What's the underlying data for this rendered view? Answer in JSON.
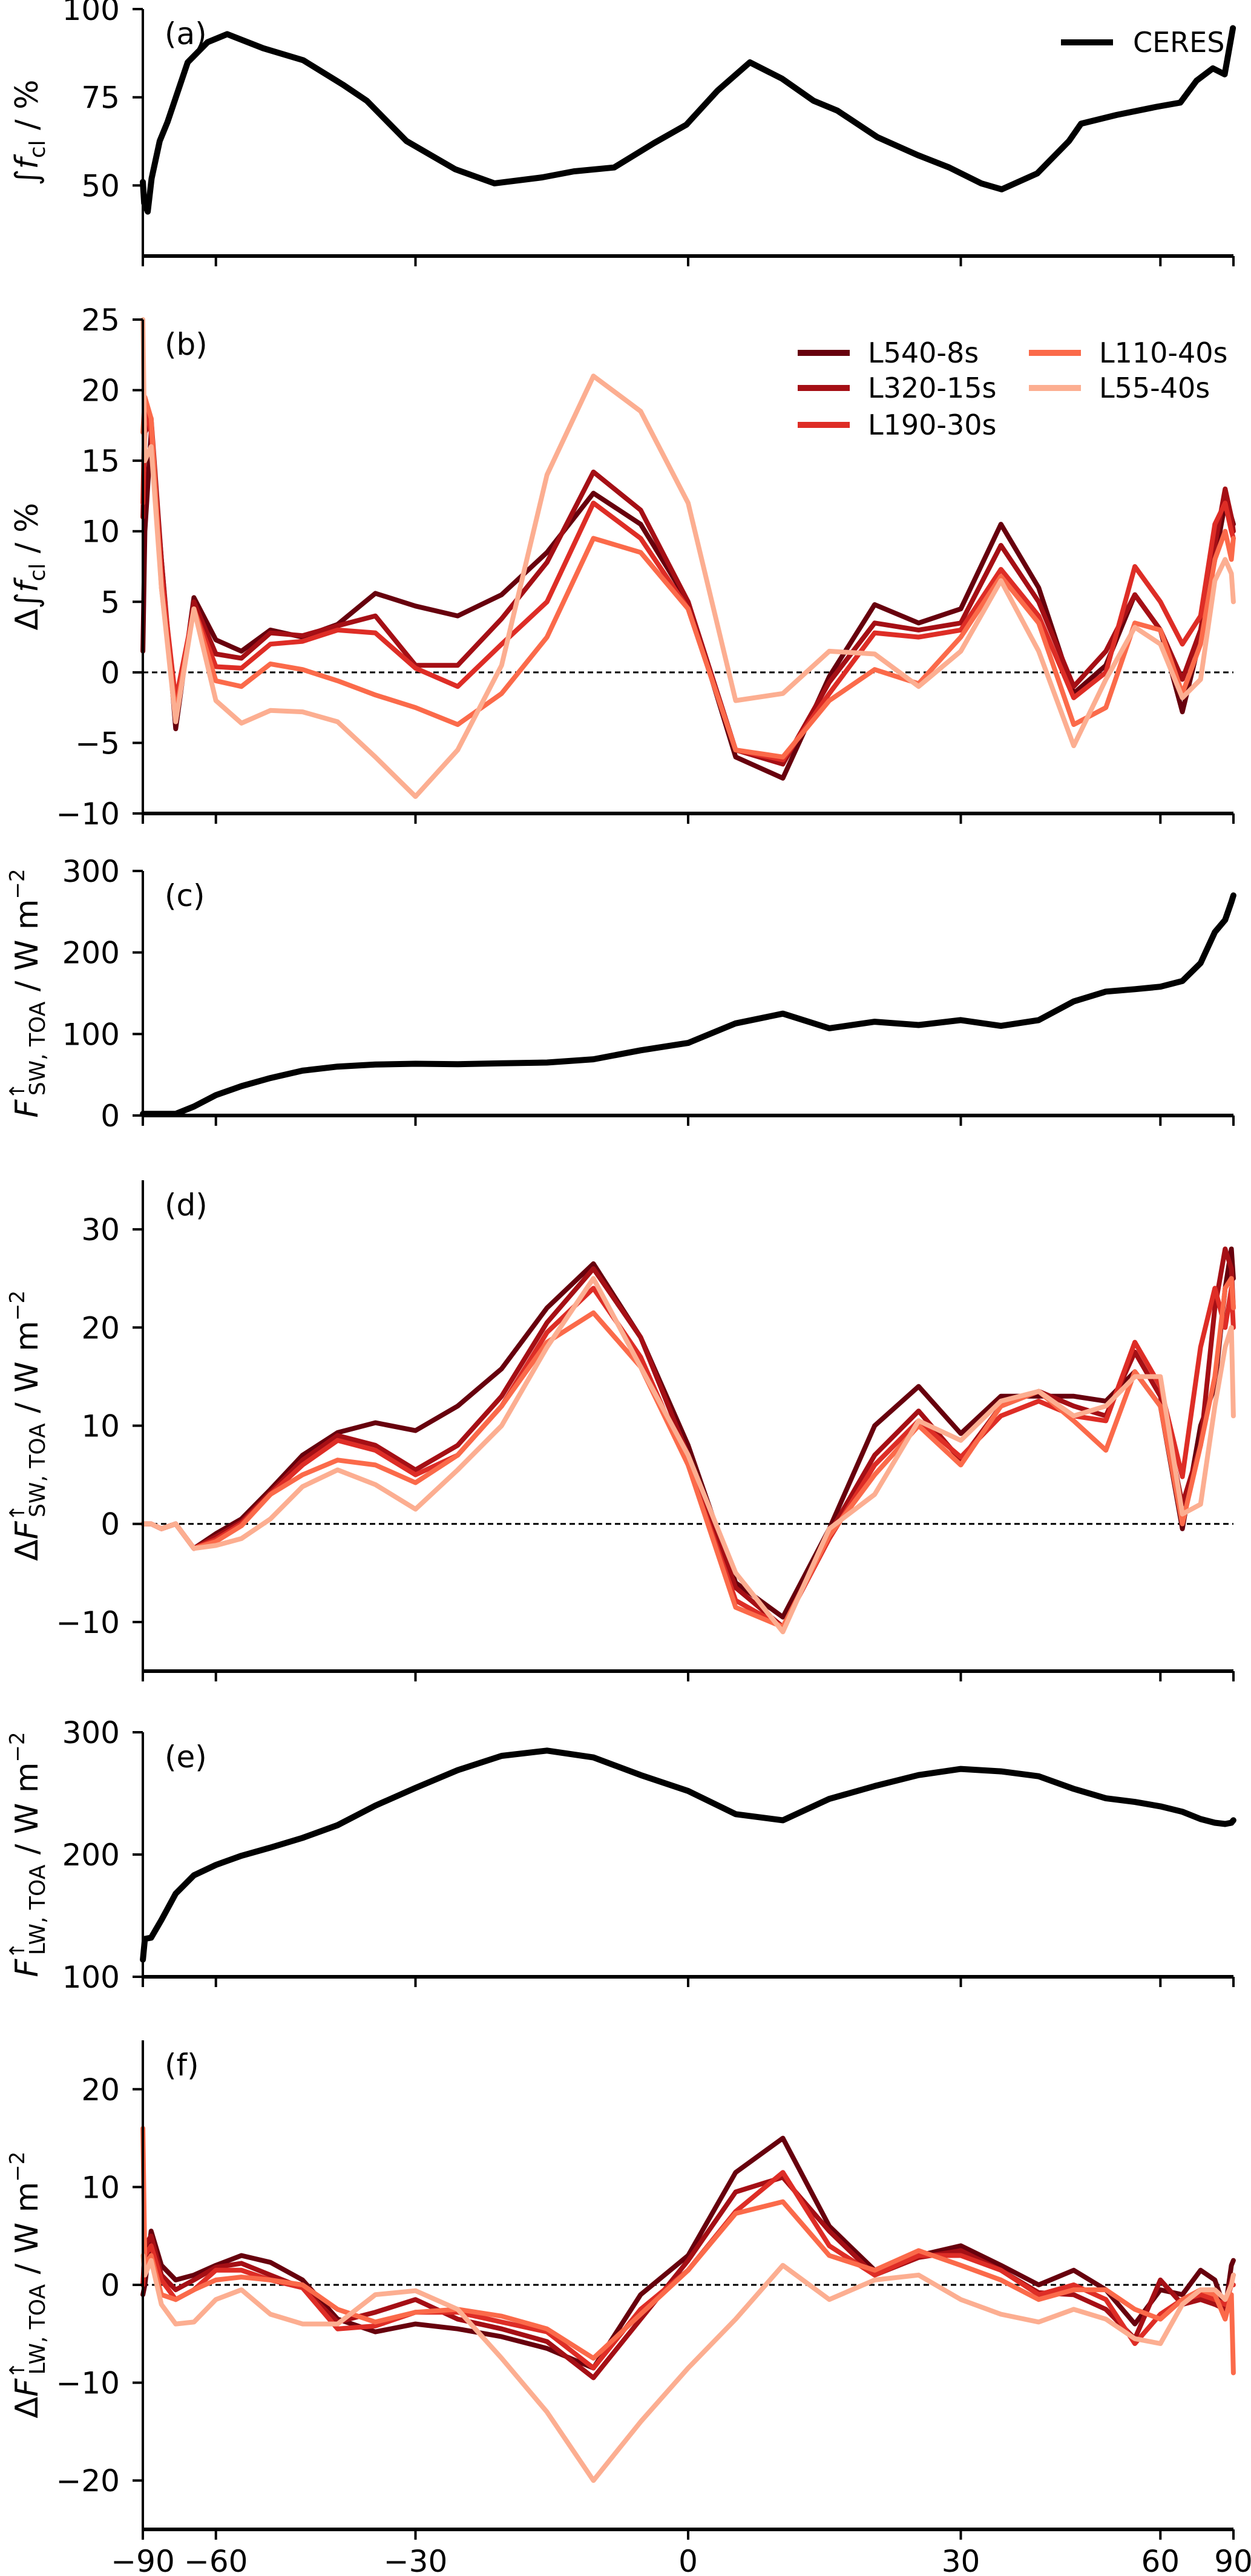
{
  "xticks": [
    -90,
    -60,
    -30,
    0,
    30,
    60,
    90
  ],
  "xscale": "sine-latitude",
  "series_colors": {
    "L540-8s": "#67000d",
    "L320-15s": "#a50f15",
    "L190-30s": "#de2d26",
    "L110-40s": "#fb6a4a",
    "L55-40s": "#fcae91",
    "CERES": "#000000"
  },
  "chart_data": [
    {
      "type": "line",
      "panel": "(a)",
      "ylabel": {
        "prefix": "∫",
        "sym": "f",
        "sup": "",
        "sub": "cl",
        "unit": " / %",
        "unit_sup": ""
      },
      "ylim": [
        30,
        100
      ],
      "yticks": [
        50,
        75,
        100
      ],
      "zero_line": false,
      "legend": "top-right",
      "x": [
        -89.8,
        -86,
        -82.3,
        -79.7,
        -75.7,
        -72.7,
        -66.6,
        -61.8,
        -57.7,
        -51.2,
        -44.9,
        -39.3,
        -36.1,
        -31.1,
        -25.3,
        -20.8,
        -15.5,
        -12.1,
        -7.8,
        -3.6,
        -0.2,
        3.1,
        6.5,
        9.9,
        13.3,
        15.9,
        20.3,
        24.9,
        28.6,
        32.5,
        35.1,
        39.8,
        44.3,
        46.1,
        51.8,
        59.2,
        64.5,
        68.8,
        74.2,
        79.7,
        87.5
      ],
      "series": [
        {
          "name": "CERES",
          "values": [
            51,
            45,
            42.6,
            52,
            62.6,
            68,
            84.9,
            90.6,
            92.9,
            88.9,
            85.5,
            78.6,
            74,
            62.6,
            54.6,
            50.6,
            52.3,
            54,
            55.1,
            62,
            67.2,
            76.9,
            84.9,
            80.3,
            74,
            71.2,
            63.7,
            58.6,
            55.1,
            50.6,
            48.9,
            53.4,
            62.6,
            67.5,
            70,
            72.3,
            73.5,
            79.7,
            83.2,
            81.5,
            94.6
          ]
        }
      ]
    },
    {
      "type": "line",
      "panel": "(b)",
      "ylabel": {
        "prefix": "Δ∫",
        "sym": "f",
        "sup": "",
        "sub": "cl",
        "unit": " / %",
        "unit_sup": ""
      },
      "ylim": [
        -10,
        25
      ],
      "yticks": [
        -10,
        -5,
        0,
        5,
        10,
        15,
        20,
        25
      ],
      "zero_line": true,
      "legend": "top-right",
      "x": [
        -89,
        -85,
        -80,
        -75,
        -70,
        -65,
        -60,
        -55,
        -50,
        -45,
        -40,
        -35,
        -30,
        -25,
        -20,
        -15,
        -10,
        -5,
        0,
        5,
        10,
        15,
        20,
        25,
        30,
        35,
        40,
        45,
        50,
        55,
        60,
        65,
        70,
        75,
        80,
        85,
        89
      ],
      "series": [
        {
          "name": "L540-8s",
          "values": [
            1.5,
            10,
            17,
            8,
            -4,
            5.3,
            2.3,
            1.5,
            3.0,
            2.5,
            3.4,
            5.6,
            4.7,
            4.0,
            5.5,
            8.5,
            12.7,
            10.5,
            5,
            -6,
            -7.5,
            -0.3,
            4.8,
            3.5,
            4.5,
            10.5,
            6.0,
            -1.5,
            0.5,
            5.5,
            3.0,
            -2.8,
            2.5,
            8,
            12,
            11,
            10.5
          ]
        },
        {
          "name": "L320-15s",
          "values": [
            11,
            17,
            18,
            8,
            -3.5,
            5,
            1.3,
            1.0,
            2.8,
            2.6,
            3.3,
            4.0,
            0.5,
            0.5,
            3.8,
            7.8,
            14.2,
            11.5,
            5,
            -5.5,
            -6.5,
            -0.7,
            3.5,
            3.0,
            3.5,
            9.0,
            5.0,
            -1.0,
            1.5,
            5.5,
            3.0,
            -0.5,
            3.0,
            9,
            13,
            11,
            10
          ]
        },
        {
          "name": "L190-30s",
          "values": [
            12,
            19,
            17,
            7,
            -2,
            4.5,
            0.4,
            0.3,
            2.0,
            2.2,
            3.0,
            2.8,
            0.3,
            -1.0,
            2.0,
            5.0,
            12.0,
            9.5,
            4.5,
            -5.5,
            -6.2,
            -1.5,
            2.8,
            2.5,
            3.0,
            7.3,
            4.0,
            -1.8,
            0.0,
            7.5,
            5.0,
            2.0,
            4.0,
            10.5,
            12,
            10,
            9.5
          ]
        },
        {
          "name": "L110-40s",
          "values": [
            17,
            19.5,
            18,
            6,
            -3,
            4.5,
            -0.6,
            -1.0,
            0.6,
            0.2,
            -0.6,
            -1.6,
            -2.5,
            -3.7,
            -1.5,
            2.5,
            9.5,
            8.5,
            4.5,
            -5.5,
            -6.0,
            -2.0,
            0.2,
            -0.8,
            2.5,
            6.8,
            3.5,
            -3.7,
            -2.5,
            3.5,
            3.0,
            -1.5,
            2.0,
            8,
            10,
            8,
            9.5
          ]
        },
        {
          "name": "L55-40s",
          "values": [
            25,
            15,
            16,
            6,
            -3.5,
            4.5,
            -2,
            -3.6,
            -2.7,
            -2.8,
            -3.5,
            -6.0,
            -8.8,
            -5.5,
            0.5,
            14,
            21.0,
            18.5,
            12,
            -2.0,
            -1.5,
            1.5,
            1.3,
            -1.0,
            1.5,
            6.5,
            1.5,
            -5.2,
            -0.5,
            3.2,
            2.0,
            -1.8,
            -0.5,
            6.5,
            8,
            7,
            5
          ]
        }
      ]
    },
    {
      "type": "line",
      "panel": "(c)",
      "ylabel": {
        "prefix": "",
        "sym": "F",
        "sup": "↑",
        "sub": "SW, TOA",
        "unit": " / W m",
        "unit_sup": "−2"
      },
      "ylim": [
        0,
        300
      ],
      "yticks": [
        0,
        100,
        200,
        300
      ],
      "zero_line": false,
      "x": [
        -89,
        -85,
        -80,
        -75,
        -70,
        -65,
        -60,
        -55,
        -50,
        -45,
        -40,
        -35,
        -30,
        -25,
        -20,
        -15,
        -10,
        -5,
        0,
        5,
        10,
        15,
        20,
        25,
        30,
        35,
        40,
        45,
        50,
        55,
        60,
        65,
        70,
        75,
        80,
        85,
        89
      ],
      "series": [
        {
          "name": "CERES",
          "values": [
            2,
            2,
            2,
            2,
            2,
            11,
            25,
            36,
            46,
            55,
            60,
            62.5,
            63.5,
            63,
            64,
            65,
            69,
            80,
            89,
            113,
            125,
            107,
            115,
            111,
            117,
            110,
            117,
            140,
            152,
            155,
            158,
            165,
            187,
            225,
            240,
            262,
            270
          ]
        }
      ]
    },
    {
      "type": "line",
      "panel": "(d)",
      "ylabel": {
        "prefix": "Δ",
        "sym": "F",
        "sup": "↑",
        "sub": "SW, TOA",
        "unit": " / W m",
        "unit_sup": "−2"
      },
      "ylim": [
        -15,
        35
      ],
      "yticks": [
        -10,
        0,
        10,
        20,
        30
      ],
      "zero_line": true,
      "x": [
        -89,
        -85,
        -80,
        -75,
        -70,
        -65,
        -60,
        -55,
        -50,
        -45,
        -40,
        -35,
        -30,
        -25,
        -20,
        -15,
        -10,
        -5,
        0,
        5,
        10,
        15,
        20,
        25,
        30,
        35,
        40,
        45,
        50,
        55,
        60,
        65,
        70,
        75,
        80,
        85,
        89
      ],
      "series": [
        {
          "name": "L540-8s",
          "values": [
            0,
            0,
            0,
            -0.5,
            0,
            -2.5,
            -1.0,
            0.5,
            3.5,
            7,
            9.3,
            10.3,
            9.5,
            12.0,
            15.8,
            22,
            26.5,
            19,
            8,
            -6,
            -9.5,
            -0.5,
            10,
            14,
            9.2,
            13,
            13,
            13,
            12.5,
            15.5,
            12,
            -0.5,
            10,
            14,
            24,
            28,
            25
          ]
        },
        {
          "name": "L320-15s",
          "values": [
            0,
            0,
            0,
            -0.5,
            0,
            -2.5,
            -1.3,
            0.2,
            3.2,
            6.5,
            9.0,
            8.0,
            5.5,
            8.0,
            13,
            20.5,
            26,
            19,
            7,
            -6.5,
            -10.5,
            -1,
            7,
            11.5,
            6.5,
            12,
            13.5,
            12,
            11,
            17.5,
            13,
            2.0,
            8,
            22,
            28,
            26,
            22
          ]
        },
        {
          "name": "L190-30s",
          "values": [
            0,
            0,
            0,
            -0.5,
            0,
            -2.5,
            -1.6,
            0,
            3.0,
            6.0,
            8.5,
            7.5,
            5.0,
            7.0,
            12,
            19.5,
            24,
            17,
            6,
            -7.8,
            -10.5,
            -1.5,
            6,
            10.5,
            6.8,
            11,
            12.5,
            11,
            10.5,
            18.5,
            14,
            4.8,
            18,
            24,
            20,
            24,
            20
          ]
        },
        {
          "name": "L110-40s",
          "values": [
            0,
            0,
            0,
            -0.5,
            0,
            -2.5,
            -1.8,
            -0.2,
            3.0,
            5.0,
            6.5,
            6.0,
            4.2,
            7.0,
            12,
            18.5,
            21.5,
            16,
            6,
            -8.5,
            -10.5,
            -1.2,
            5,
            10.0,
            6.0,
            12,
            13.5,
            10.5,
            7.5,
            15.5,
            12,
            0,
            8,
            15,
            24,
            25,
            22
          ]
        },
        {
          "name": "L55-40s",
          "values": [
            0,
            0,
            0,
            -0.5,
            0,
            -2.5,
            -2.2,
            -1.5,
            0.5,
            3.8,
            5.5,
            4.0,
            1.5,
            5.5,
            10,
            18,
            25,
            16,
            7,
            -5,
            -11,
            -0.5,
            3,
            10.5,
            8.5,
            12.5,
            13.5,
            11,
            12,
            15.0,
            15,
            1,
            2,
            12,
            18,
            20,
            11
          ]
        }
      ]
    },
    {
      "type": "line",
      "panel": "(e)",
      "ylabel": {
        "prefix": "",
        "sym": "F",
        "sup": "↑",
        "sub": "LW, TOA",
        "unit": " / W m",
        "unit_sup": "−2"
      },
      "ylim": [
        100,
        300
      ],
      "yticks": [
        100,
        200,
        300
      ],
      "zero_line": false,
      "x": [
        -89,
        -85,
        -80,
        -75,
        -70,
        -65,
        -60,
        -55,
        -50,
        -45,
        -40,
        -35,
        -30,
        -25,
        -20,
        -15,
        -10,
        -5,
        0,
        5,
        10,
        15,
        20,
        25,
        30,
        35,
        40,
        45,
        50,
        55,
        60,
        65,
        70,
        75,
        80,
        85,
        89
      ],
      "series": [
        {
          "name": "CERES",
          "values": [
            114,
            131,
            132,
            146.5,
            168,
            183,
            191.5,
            199,
            205.7,
            213.6,
            224,
            240,
            254.5,
            269,
            280.7,
            285,
            279.4,
            265,
            252,
            233,
            228,
            245.5,
            256,
            265,
            270,
            268,
            264,
            253.7,
            246,
            243,
            239.4,
            235,
            229,
            226,
            225,
            226,
            228
          ]
        }
      ]
    },
    {
      "type": "line",
      "panel": "(f)",
      "ylabel": {
        "prefix": "Δ",
        "sym": "F",
        "sup": "↑",
        "sub": "LW, TOA",
        "unit": " / W m",
        "unit_sup": "−2"
      },
      "ylim": [
        -25,
        25
      ],
      "yticks": [
        -20,
        -10,
        0,
        10,
        20
      ],
      "zero_line": true,
      "x": [
        -89,
        -85,
        -80,
        -75,
        -70,
        -65,
        -60,
        -55,
        -50,
        -45,
        -40,
        -35,
        -30,
        -25,
        -20,
        -15,
        -10,
        -5,
        0,
        5,
        10,
        15,
        20,
        25,
        30,
        35,
        40,
        45,
        50,
        55,
        60,
        65,
        70,
        75,
        80,
        85,
        89
      ],
      "series": [
        {
          "name": "L540-8s",
          "values": [
            -1,
            0,
            5.5,
            2,
            0.5,
            1.0,
            2.0,
            3.0,
            2.3,
            0.5,
            -3.5,
            -4.8,
            -4.0,
            -4.5,
            -5.3,
            -6.5,
            -8.5,
            -1.0,
            3.0,
            11.5,
            15,
            6.0,
            1.5,
            3.0,
            4.0,
            2.0,
            0,
            1.5,
            -0.5,
            -4.0,
            -0.5,
            -1.0,
            1.5,
            0.5,
            -2.5,
            2.0,
            2.5
          ]
        },
        {
          "name": "L320-15s",
          "values": [
            0,
            4,
            5,
            1,
            -0.5,
            0.5,
            1.8,
            2.2,
            1.0,
            -0.3,
            -3.8,
            -2.8,
            -1.5,
            -3.5,
            -4.5,
            -5.8,
            -9.5,
            -3.5,
            2.5,
            9.5,
            11,
            5.5,
            1.0,
            2.8,
            3.5,
            1.5,
            -0.8,
            -1.0,
            -2.5,
            -5.5,
            0.5,
            -2.0,
            -1.5,
            -2.0,
            -2.5,
            0.5,
            1.0
          ]
        },
        {
          "name": "L190-30s",
          "values": [
            0,
            3,
            4,
            0.5,
            -1.5,
            -0.5,
            1.5,
            1.5,
            0.5,
            -0.3,
            -4.5,
            -4.2,
            -2.8,
            -2.8,
            -3.8,
            -4.8,
            -8.5,
            -2.5,
            1.5,
            7.5,
            11.5,
            4.0,
            1.0,
            3.0,
            3.0,
            1.5,
            -1.0,
            0,
            -1.5,
            -6.0,
            -3.0,
            -1.5,
            -1.0,
            -1.5,
            -2.0,
            0,
            0
          ]
        },
        {
          "name": "L110-40s",
          "values": [
            16,
            2,
            3,
            -1,
            -1.5,
            -0.5,
            0.5,
            0.8,
            0.5,
            0,
            -2.5,
            -3.8,
            -2.8,
            -2.5,
            -3.2,
            -4.5,
            -7.5,
            -3.0,
            1.5,
            7.3,
            8.5,
            3.0,
            1.5,
            3.5,
            2.0,
            0.5,
            -1.5,
            -0.5,
            -0.5,
            -2.5,
            -3.5,
            -1.5,
            -0.5,
            -1.0,
            -3.5,
            -1.0,
            -9
          ]
        },
        {
          "name": "L55-40s",
          "values": [
            3,
            1,
            2.5,
            -2,
            -4.0,
            -3.8,
            -1.5,
            -0.5,
            -3.0,
            -4.0,
            -4.0,
            -1.0,
            -0.6,
            -2.5,
            -7.5,
            -13,
            -20,
            -14,
            -8.5,
            -3.5,
            2.0,
            -1.5,
            0.5,
            1.0,
            -1.5,
            -3.0,
            -3.8,
            -2.5,
            -3.5,
            -5.5,
            -6.0,
            -2.0,
            -0.5,
            -0.5,
            -1.5,
            0,
            1
          ]
        }
      ]
    }
  ]
}
